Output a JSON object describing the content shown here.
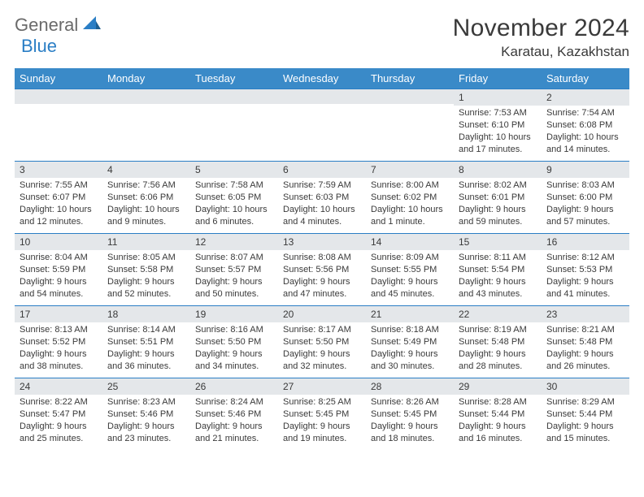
{
  "brand": {
    "part1": "General",
    "part2": "Blue"
  },
  "title": "November 2024",
  "location": "Karatau, Kazakhstan",
  "colors": {
    "header_bg": "#3a8ac8",
    "row_border": "#2a7ec5",
    "daynum_bg": "#e4e7ea",
    "text": "#3a3a3a",
    "logo_gray": "#6a6a6a",
    "logo_blue": "#2a7ec5"
  },
  "days_of_week": [
    "Sunday",
    "Monday",
    "Tuesday",
    "Wednesday",
    "Thursday",
    "Friday",
    "Saturday"
  ],
  "weeks": [
    [
      null,
      null,
      null,
      null,
      null,
      {
        "n": "1",
        "sr": "7:53 AM",
        "ss": "6:10 PM",
        "d": "10 hours and 17 minutes."
      },
      {
        "n": "2",
        "sr": "7:54 AM",
        "ss": "6:08 PM",
        "d": "10 hours and 14 minutes."
      }
    ],
    [
      {
        "n": "3",
        "sr": "7:55 AM",
        "ss": "6:07 PM",
        "d": "10 hours and 12 minutes."
      },
      {
        "n": "4",
        "sr": "7:56 AM",
        "ss": "6:06 PM",
        "d": "10 hours and 9 minutes."
      },
      {
        "n": "5",
        "sr": "7:58 AM",
        "ss": "6:05 PM",
        "d": "10 hours and 6 minutes."
      },
      {
        "n": "6",
        "sr": "7:59 AM",
        "ss": "6:03 PM",
        "d": "10 hours and 4 minutes."
      },
      {
        "n": "7",
        "sr": "8:00 AM",
        "ss": "6:02 PM",
        "d": "10 hours and 1 minute."
      },
      {
        "n": "8",
        "sr": "8:02 AM",
        "ss": "6:01 PM",
        "d": "9 hours and 59 minutes."
      },
      {
        "n": "9",
        "sr": "8:03 AM",
        "ss": "6:00 PM",
        "d": "9 hours and 57 minutes."
      }
    ],
    [
      {
        "n": "10",
        "sr": "8:04 AM",
        "ss": "5:59 PM",
        "d": "9 hours and 54 minutes."
      },
      {
        "n": "11",
        "sr": "8:05 AM",
        "ss": "5:58 PM",
        "d": "9 hours and 52 minutes."
      },
      {
        "n": "12",
        "sr": "8:07 AM",
        "ss": "5:57 PM",
        "d": "9 hours and 50 minutes."
      },
      {
        "n": "13",
        "sr": "8:08 AM",
        "ss": "5:56 PM",
        "d": "9 hours and 47 minutes."
      },
      {
        "n": "14",
        "sr": "8:09 AM",
        "ss": "5:55 PM",
        "d": "9 hours and 45 minutes."
      },
      {
        "n": "15",
        "sr": "8:11 AM",
        "ss": "5:54 PM",
        "d": "9 hours and 43 minutes."
      },
      {
        "n": "16",
        "sr": "8:12 AM",
        "ss": "5:53 PM",
        "d": "9 hours and 41 minutes."
      }
    ],
    [
      {
        "n": "17",
        "sr": "8:13 AM",
        "ss": "5:52 PM",
        "d": "9 hours and 38 minutes."
      },
      {
        "n": "18",
        "sr": "8:14 AM",
        "ss": "5:51 PM",
        "d": "9 hours and 36 minutes."
      },
      {
        "n": "19",
        "sr": "8:16 AM",
        "ss": "5:50 PM",
        "d": "9 hours and 34 minutes."
      },
      {
        "n": "20",
        "sr": "8:17 AM",
        "ss": "5:50 PM",
        "d": "9 hours and 32 minutes."
      },
      {
        "n": "21",
        "sr": "8:18 AM",
        "ss": "5:49 PM",
        "d": "9 hours and 30 minutes."
      },
      {
        "n": "22",
        "sr": "8:19 AM",
        "ss": "5:48 PM",
        "d": "9 hours and 28 minutes."
      },
      {
        "n": "23",
        "sr": "8:21 AM",
        "ss": "5:48 PM",
        "d": "9 hours and 26 minutes."
      }
    ],
    [
      {
        "n": "24",
        "sr": "8:22 AM",
        "ss": "5:47 PM",
        "d": "9 hours and 25 minutes."
      },
      {
        "n": "25",
        "sr": "8:23 AM",
        "ss": "5:46 PM",
        "d": "9 hours and 23 minutes."
      },
      {
        "n": "26",
        "sr": "8:24 AM",
        "ss": "5:46 PM",
        "d": "9 hours and 21 minutes."
      },
      {
        "n": "27",
        "sr": "8:25 AM",
        "ss": "5:45 PM",
        "d": "9 hours and 19 minutes."
      },
      {
        "n": "28",
        "sr": "8:26 AM",
        "ss": "5:45 PM",
        "d": "9 hours and 18 minutes."
      },
      {
        "n": "29",
        "sr": "8:28 AM",
        "ss": "5:44 PM",
        "d": "9 hours and 16 minutes."
      },
      {
        "n": "30",
        "sr": "8:29 AM",
        "ss": "5:44 PM",
        "d": "9 hours and 15 minutes."
      }
    ]
  ]
}
